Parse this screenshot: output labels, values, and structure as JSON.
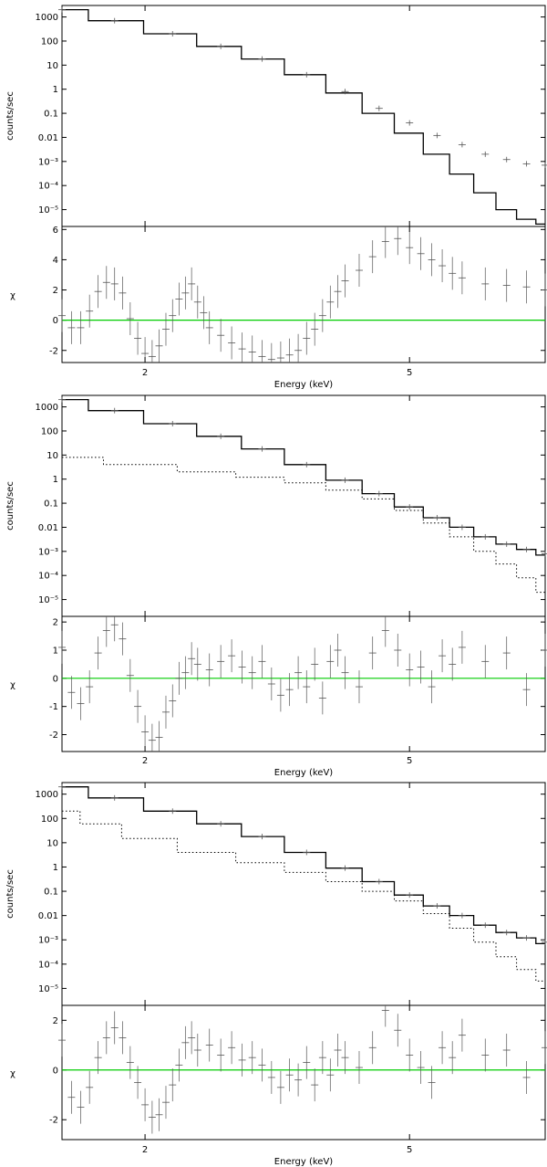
{
  "chart_data": [
    {
      "type": "line",
      "title": "",
      "top": {
        "ylabel": "counts/sec",
        "yscale": "log",
        "ylim": [
          2e-06,
          3000
        ],
        "yticks": [
          "1000",
          "100",
          "10",
          "1",
          "0.1",
          "0.01",
          "10⁻³",
          "10⁻⁴",
          "10⁻⁵"
        ],
        "observed": [
          [
            1.5,
            2000
          ],
          [
            1.8,
            700
          ],
          [
            2.2,
            200
          ],
          [
            2.6,
            60
          ],
          [
            3.0,
            18
          ],
          [
            3.5,
            4
          ],
          [
            4.0,
            0.8
          ],
          [
            4.5,
            0.16
          ],
          [
            5.0,
            0.04
          ],
          [
            5.5,
            0.012
          ],
          [
            6.0,
            0.005
          ],
          [
            6.5,
            0.002
          ],
          [
            7.0,
            0.0012
          ],
          [
            7.5,
            0.0008
          ],
          [
            8.0,
            0.0007
          ]
        ],
        "models": [
          {
            "style": "solid",
            "points": [
              [
                1.5,
                2000
              ],
              [
                1.8,
                700
              ],
              [
                2.2,
                200
              ],
              [
                2.6,
                60
              ],
              [
                3.0,
                18
              ],
              [
                3.5,
                4
              ],
              [
                4.0,
                0.7
              ],
              [
                4.5,
                0.1
              ],
              [
                5.0,
                0.015
              ],
              [
                5.5,
                0.002
              ],
              [
                6.0,
                0.0003
              ],
              [
                6.5,
                5e-05
              ],
              [
                7.0,
                1e-05
              ],
              [
                7.5,
                4e-06
              ],
              [
                8.0,
                2.5e-06
              ]
            ]
          }
        ]
      },
      "bottom": {
        "ylabel": "χ",
        "ylim": [
          -2.8,
          6.2
        ],
        "yticks": [
          "6",
          "4",
          "2",
          "0",
          "-2"
        ],
        "residuals": [
          [
            1.5,
            0.3
          ],
          [
            1.55,
            -0.5
          ],
          [
            1.6,
            -0.5
          ],
          [
            1.65,
            0.6
          ],
          [
            1.7,
            1.9
          ],
          [
            1.75,
            2.5
          ],
          [
            1.8,
            2.4
          ],
          [
            1.85,
            1.8
          ],
          [
            1.9,
            0.1
          ],
          [
            1.95,
            -1.2
          ],
          [
            2.0,
            -2.2
          ],
          [
            2.05,
            -2.4
          ],
          [
            2.1,
            -1.7
          ],
          [
            2.15,
            -0.6
          ],
          [
            2.2,
            0.3
          ],
          [
            2.25,
            1.4
          ],
          [
            2.3,
            1.8
          ],
          [
            2.35,
            2.4
          ],
          [
            2.4,
            1.2
          ],
          [
            2.45,
            0.5
          ],
          [
            2.5,
            -0.5
          ],
          [
            2.6,
            -1.0
          ],
          [
            2.7,
            -1.5
          ],
          [
            2.8,
            -1.9
          ],
          [
            2.9,
            -2.1
          ],
          [
            3.0,
            -2.4
          ],
          [
            3.1,
            -2.6
          ],
          [
            3.2,
            -2.5
          ],
          [
            3.3,
            -2.3
          ],
          [
            3.4,
            -2.0
          ],
          [
            3.5,
            -1.2
          ],
          [
            3.6,
            -0.6
          ],
          [
            3.7,
            0.3
          ],
          [
            3.8,
            1.2
          ],
          [
            3.9,
            1.9
          ],
          [
            4.0,
            2.6
          ],
          [
            4.2,
            3.3
          ],
          [
            4.4,
            4.2
          ],
          [
            4.6,
            5.2
          ],
          [
            4.8,
            5.4
          ],
          [
            5.0,
            4.8
          ],
          [
            5.2,
            4.4
          ],
          [
            5.4,
            4.0
          ],
          [
            5.6,
            3.6
          ],
          [
            5.8,
            3.1
          ],
          [
            6.0,
            2.8
          ],
          [
            6.5,
            2.4
          ],
          [
            7.0,
            2.3
          ],
          [
            7.5,
            2.2
          ],
          [
            8.0,
            2.0
          ]
        ]
      }
    },
    {
      "type": "line",
      "title": "",
      "top": {
        "ylabel": "counts/sec",
        "yscale": "log",
        "ylim": [
          2e-06,
          3000
        ],
        "yticks": [
          "1000",
          "100",
          "10",
          "1",
          "0.1",
          "0.01",
          "10⁻³",
          "10⁻⁴",
          "10⁻⁵"
        ],
        "observed": [
          [
            1.5,
            2000
          ],
          [
            1.8,
            700
          ],
          [
            2.2,
            200
          ],
          [
            2.6,
            60
          ],
          [
            3.0,
            18
          ],
          [
            3.5,
            4
          ],
          [
            4.0,
            0.9
          ],
          [
            4.5,
            0.25
          ],
          [
            5.0,
            0.07
          ],
          [
            5.5,
            0.025
          ],
          [
            6.0,
            0.01
          ],
          [
            6.5,
            0.004
          ],
          [
            7.0,
            0.002
          ],
          [
            7.5,
            0.0012
          ],
          [
            8.0,
            0.0008
          ]
        ],
        "models": [
          {
            "style": "solid",
            "points": [
              [
                1.5,
                2000
              ],
              [
                1.8,
                700
              ],
              [
                2.2,
                200
              ],
              [
                2.6,
                60
              ],
              [
                3.0,
                18
              ],
              [
                3.5,
                4
              ],
              [
                4.0,
                0.9
              ],
              [
                4.5,
                0.25
              ],
              [
                5.0,
                0.07
              ],
              [
                5.5,
                0.025
              ],
              [
                6.0,
                0.01
              ],
              [
                6.5,
                0.004
              ],
              [
                7.0,
                0.002
              ],
              [
                7.5,
                0.0012
              ],
              [
                8.0,
                0.0007
              ]
            ]
          },
          {
            "style": "dotted",
            "points": [
              [
                1.5,
                8
              ],
              [
                2.0,
                4
              ],
              [
                2.5,
                2
              ],
              [
                3.0,
                1.2
              ],
              [
                3.5,
                0.7
              ],
              [
                4.0,
                0.35
              ],
              [
                4.5,
                0.15
              ],
              [
                5.0,
                0.05
              ],
              [
                5.5,
                0.015
              ],
              [
                6.0,
                0.004
              ],
              [
                6.5,
                0.001
              ],
              [
                7.0,
                0.0003
              ],
              [
                7.5,
                8e-05
              ],
              [
                8.0,
                2e-05
              ]
            ]
          }
        ]
      },
      "bottom": {
        "ylabel": "χ",
        "ylim": [
          -2.6,
          2.2
        ],
        "yticks": [
          "2",
          "1",
          "0",
          "-1",
          "-2"
        ],
        "residuals": [
          [
            1.5,
            1.1
          ],
          [
            1.55,
            -0.5
          ],
          [
            1.6,
            -0.9
          ],
          [
            1.65,
            -0.3
          ],
          [
            1.7,
            0.9
          ],
          [
            1.75,
            1.7
          ],
          [
            1.8,
            1.9
          ],
          [
            1.85,
            1.4
          ],
          [
            1.9,
            0.1
          ],
          [
            1.95,
            -1.0
          ],
          [
            2.0,
            -1.9
          ],
          [
            2.05,
            -2.2
          ],
          [
            2.1,
            -2.1
          ],
          [
            2.15,
            -1.2
          ],
          [
            2.2,
            -0.8
          ],
          [
            2.25,
            0.0
          ],
          [
            2.3,
            0.2
          ],
          [
            2.35,
            0.7
          ],
          [
            2.4,
            0.5
          ],
          [
            2.5,
            0.3
          ],
          [
            2.6,
            0.6
          ],
          [
            2.7,
            0.8
          ],
          [
            2.8,
            0.4
          ],
          [
            2.9,
            0.2
          ],
          [
            3.0,
            0.6
          ],
          [
            3.1,
            -0.2
          ],
          [
            3.2,
            -0.6
          ],
          [
            3.3,
            -0.4
          ],
          [
            3.4,
            0.2
          ],
          [
            3.5,
            -0.3
          ],
          [
            3.6,
            0.5
          ],
          [
            3.7,
            -0.7
          ],
          [
            3.8,
            0.6
          ],
          [
            3.9,
            1.0
          ],
          [
            4.0,
            0.2
          ],
          [
            4.2,
            -0.3
          ],
          [
            4.4,
            0.9
          ],
          [
            4.6,
            1.7
          ],
          [
            4.8,
            1.0
          ],
          [
            5.0,
            0.3
          ],
          [
            5.2,
            0.4
          ],
          [
            5.4,
            -0.3
          ],
          [
            5.6,
            0.8
          ],
          [
            5.8,
            0.5
          ],
          [
            6.0,
            1.1
          ],
          [
            6.5,
            0.6
          ],
          [
            7.0,
            0.9
          ],
          [
            7.5,
            -0.4
          ],
          [
            8.0,
            1.0
          ]
        ]
      }
    },
    {
      "type": "line",
      "title": "",
      "top": {
        "ylabel": "counts/sec",
        "yscale": "log",
        "ylim": [
          2e-06,
          3000
        ],
        "yticks": [
          "1000",
          "100",
          "10",
          "1",
          "0.1",
          "0.01",
          "10⁻³",
          "10⁻⁴",
          "10⁻⁵"
        ],
        "observed": [
          [
            1.5,
            2000
          ],
          [
            1.8,
            700
          ],
          [
            2.2,
            200
          ],
          [
            2.6,
            60
          ],
          [
            3.0,
            18
          ],
          [
            3.5,
            4
          ],
          [
            4.0,
            0.9
          ],
          [
            4.5,
            0.25
          ],
          [
            5.0,
            0.07
          ],
          [
            5.5,
            0.025
          ],
          [
            6.0,
            0.01
          ],
          [
            6.5,
            0.004
          ],
          [
            7.0,
            0.002
          ],
          [
            7.5,
            0.0012
          ],
          [
            8.0,
            0.0008
          ]
        ],
        "models": [
          {
            "style": "solid",
            "points": [
              [
                1.5,
                2000
              ],
              [
                1.8,
                700
              ],
              [
                2.2,
                200
              ],
              [
                2.6,
                60
              ],
              [
                3.0,
                18
              ],
              [
                3.5,
                4
              ],
              [
                4.0,
                0.9
              ],
              [
                4.5,
                0.25
              ],
              [
                5.0,
                0.07
              ],
              [
                5.5,
                0.025
              ],
              [
                6.0,
                0.01
              ],
              [
                6.5,
                0.004
              ],
              [
                7.0,
                0.002
              ],
              [
                7.5,
                0.0012
              ],
              [
                8.0,
                0.0007
              ]
            ]
          },
          {
            "style": "dotted",
            "points": [
              [
                1.5,
                200
              ],
              [
                1.7,
                60
              ],
              [
                2.0,
                15
              ],
              [
                2.5,
                4
              ],
              [
                3.0,
                1.5
              ],
              [
                3.5,
                0.6
              ],
              [
                4.0,
                0.25
              ],
              [
                4.5,
                0.1
              ],
              [
                5.0,
                0.04
              ],
              [
                5.5,
                0.012
              ],
              [
                6.0,
                0.003
              ],
              [
                6.5,
                0.0008
              ],
              [
                7.0,
                0.0002
              ],
              [
                7.5,
                6e-05
              ],
              [
                8.0,
                2e-05
              ]
            ]
          }
        ]
      },
      "bottom": {
        "ylabel": "χ",
        "ylim": [
          -2.8,
          2.6
        ],
        "yticks": [
          "2",
          "0",
          "-2"
        ],
        "residuals": [
          [
            1.5,
            1.2
          ],
          [
            1.55,
            -1.1
          ],
          [
            1.6,
            -1.5
          ],
          [
            1.65,
            -0.7
          ],
          [
            1.7,
            0.5
          ],
          [
            1.75,
            1.3
          ],
          [
            1.8,
            1.7
          ],
          [
            1.85,
            1.3
          ],
          [
            1.9,
            0.3
          ],
          [
            1.95,
            -0.5
          ],
          [
            2.0,
            -1.4
          ],
          [
            2.05,
            -1.9
          ],
          [
            2.1,
            -1.8
          ],
          [
            2.15,
            -1.3
          ],
          [
            2.2,
            -0.6
          ],
          [
            2.25,
            0.2
          ],
          [
            2.3,
            1.1
          ],
          [
            2.35,
            1.3
          ],
          [
            2.4,
            0.8
          ],
          [
            2.5,
            1.0
          ],
          [
            2.6,
            0.6
          ],
          [
            2.7,
            0.9
          ],
          [
            2.8,
            0.4
          ],
          [
            2.9,
            0.5
          ],
          [
            3.0,
            0.2
          ],
          [
            3.1,
            -0.3
          ],
          [
            3.2,
            -0.7
          ],
          [
            3.3,
            -0.2
          ],
          [
            3.4,
            -0.4
          ],
          [
            3.5,
            0.3
          ],
          [
            3.6,
            -0.6
          ],
          [
            3.7,
            0.5
          ],
          [
            3.8,
            -0.2
          ],
          [
            3.9,
            0.8
          ],
          [
            4.0,
            0.5
          ],
          [
            4.2,
            0.1
          ],
          [
            4.4,
            0.9
          ],
          [
            4.6,
            2.4
          ],
          [
            4.8,
            1.6
          ],
          [
            5.0,
            0.6
          ],
          [
            5.2,
            0.1
          ],
          [
            5.4,
            -0.5
          ],
          [
            5.6,
            0.9
          ],
          [
            5.8,
            0.5
          ],
          [
            6.0,
            1.4
          ],
          [
            6.5,
            0.6
          ],
          [
            7.0,
            0.8
          ],
          [
            7.5,
            -0.3
          ],
          [
            8.0,
            0.9
          ]
        ]
      }
    }
  ],
  "shared": {
    "xlabel": "Energy (keV)",
    "xscale": "log",
    "xlim": [
      1.5,
      8.0
    ],
    "xticks": [
      {
        "value": 2,
        "label": "2"
      },
      {
        "value": 5,
        "label": "5"
      }
    ],
    "colors": {
      "axis": "#000000",
      "data": "#555555",
      "model": "#000000",
      "zero_line": "#00cc00"
    }
  }
}
